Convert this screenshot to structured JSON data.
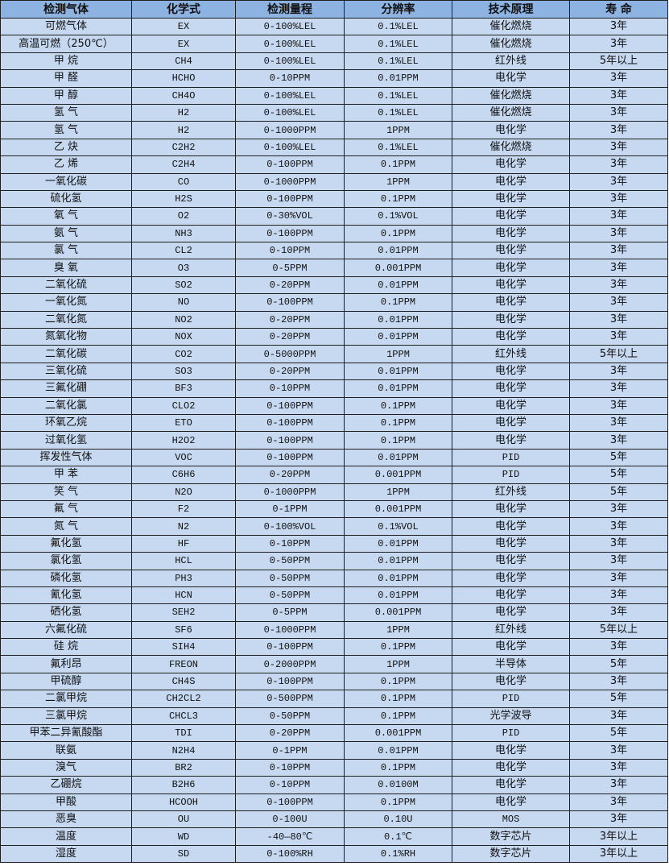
{
  "colors": {
    "header_bg": "#8db3e2",
    "cell_bg": "#c6d9f1",
    "border": "#1f1f1f"
  },
  "headers": [
    "检测气体",
    "化学式",
    "检测量程",
    "分辨率",
    "技术原理",
    "寿 命"
  ],
  "rows": [
    [
      "可燃气体",
      "EX",
      "0-100%LEL",
      "0.1%LEL",
      "催化燃烧",
      "3年"
    ],
    [
      "高温可燃（250℃）",
      "EX",
      "0-100%LEL",
      "0.1%LEL",
      "催化燃烧",
      "3年"
    ],
    [
      "甲 烷",
      "CH4",
      "0-100%LEL",
      "0.1%LEL",
      "红外线",
      "5年以上"
    ],
    [
      "甲 醛",
      "HCHO",
      "0-10PPM",
      "0.01PPM",
      "电化学",
      "3年"
    ],
    [
      "甲 醇",
      "CH4O",
      "0-100%LEL",
      "0.1%LEL",
      "催化燃烧",
      "3年"
    ],
    [
      "氢 气",
      "H2",
      "0-100%LEL",
      "0.1%LEL",
      "催化燃烧",
      "3年"
    ],
    [
      "氢 气",
      "H2",
      "0-1000PPM",
      "1PPM",
      "电化学",
      "3年"
    ],
    [
      "乙 炔",
      "C2H2",
      "0-100%LEL",
      "0.1%LEL",
      "催化燃烧",
      "3年"
    ],
    [
      "乙 烯",
      "C2H4",
      "0-100PPM",
      "0.1PPM",
      "电化学",
      "3年"
    ],
    [
      "一氧化碳",
      "CO",
      "0-1000PPM",
      "1PPM",
      "电化学",
      "3年"
    ],
    [
      "硫化氢",
      "H2S",
      "0-100PPM",
      "0.1PPM",
      "电化学",
      "3年"
    ],
    [
      "氧 气",
      "O2",
      "0-30%VOL",
      "0.1%VOL",
      "电化学",
      "3年"
    ],
    [
      "氨 气",
      "NH3",
      "0-100PPM",
      "0.1PPM",
      "电化学",
      "3年"
    ],
    [
      "氯 气",
      "CL2",
      "0-10PPM",
      "0.01PPM",
      "电化学",
      "3年"
    ],
    [
      "臭 氧",
      "O3",
      "0-5PPM",
      "0.001PPM",
      "电化学",
      "3年"
    ],
    [
      "二氧化硫",
      "SO2",
      "0-20PPM",
      "0.01PPM",
      "电化学",
      "3年"
    ],
    [
      "一氧化氮",
      "NO",
      "0-100PPM",
      "0.1PPM",
      "电化学",
      "3年"
    ],
    [
      "二氧化氮",
      "NO2",
      "0-20PPM",
      "0.01PPM",
      "电化学",
      "3年"
    ],
    [
      "氮氧化物",
      "NOX",
      "0-20PPM",
      "0.01PPM",
      "电化学",
      "3年"
    ],
    [
      "二氧化碳",
      "CO2",
      "0-5000PPM",
      "1PPM",
      "红外线",
      "5年以上"
    ],
    [
      "三氧化硫",
      "SO3",
      "0-20PPM",
      "0.01PPM",
      "电化学",
      "3年"
    ],
    [
      "三氟化硼",
      "BF3",
      "0-10PPM",
      "0.01PPM",
      "电化学",
      "3年"
    ],
    [
      "二氧化氯",
      "CLO2",
      "0-100PPM",
      "0.1PPM",
      "电化学",
      "3年"
    ],
    [
      "环氧乙烷",
      "ETO",
      "0-100PPM",
      "0.1PPM",
      "电化学",
      "3年"
    ],
    [
      "过氧化氢",
      "H2O2",
      "0-100PPM",
      "0.1PPM",
      "电化学",
      "3年"
    ],
    [
      "挥发性气体",
      "VOC",
      "0-100PPM",
      "0.01PPM",
      "PID",
      "5年"
    ],
    [
      "甲 苯",
      "C6H6",
      "0-20PPM",
      "0.001PPM",
      "PID",
      "5年"
    ],
    [
      "笑 气",
      "N2O",
      "0-1000PPM",
      "1PPM",
      "红外线",
      "5年"
    ],
    [
      "氟 气",
      "F2",
      "0-1PPM",
      "0.001PPM",
      "电化学",
      "3年"
    ],
    [
      "氮 气",
      "N2",
      "0-100%VOL",
      "0.1%VOL",
      "电化学",
      "3年"
    ],
    [
      "氟化氢",
      "HF",
      "0-10PPM",
      "0.01PPM",
      "电化学",
      "3年"
    ],
    [
      "氯化氢",
      "HCL",
      "0-50PPM",
      "0.01PPM",
      "电化学",
      "3年"
    ],
    [
      "磷化氢",
      "PH3",
      "0-50PPM",
      "0.01PPM",
      "电化学",
      "3年"
    ],
    [
      "氰化氢",
      "HCN",
      "0-50PPM",
      "0.01PPM",
      "电化学",
      "3年"
    ],
    [
      "硒化氢",
      "SEH2",
      "0-5PPM",
      "0.001PPM",
      "电化学",
      "3年"
    ],
    [
      "六氟化硫",
      "SF6",
      "0-1000PPM",
      "1PPM",
      "红外线",
      "5年以上"
    ],
    [
      "硅 烷",
      "SIH4",
      "0-100PPM",
      "0.1PPM",
      "电化学",
      "3年"
    ],
    [
      "氟利昂",
      "FREON",
      "0-2000PPM",
      "1PPM",
      "半导体",
      "5年"
    ],
    [
      "甲硫醇",
      "CH4S",
      "0-100PPM",
      "0.1PPM",
      "电化学",
      "3年"
    ],
    [
      "二氯甲烷",
      "CH2CL2",
      "0-500PPM",
      "0.1PPM",
      "PID",
      "5年"
    ],
    [
      "三氯甲烷",
      "CHCL3",
      "0-50PPM",
      "0.1PPM",
      "光学波导",
      "3年"
    ],
    [
      "甲苯二异氰酸酯",
      "TDI",
      "0-20PPM",
      "0.001PPM",
      "PID",
      "5年"
    ],
    [
      "联氨",
      "N2H4",
      "0-1PPM",
      "0.01PPM",
      "电化学",
      "3年"
    ],
    [
      "溴气",
      "BR2",
      "0-10PPM",
      "0.1PPM",
      "电化学",
      "3年"
    ],
    [
      "乙硼烷",
      "B2H6",
      "0-10PPM",
      "0.0100M",
      "电化学",
      "3年"
    ],
    [
      "甲酸",
      "HCOOH",
      "0-100PPM",
      "0.1PPM",
      "电化学",
      "3年"
    ],
    [
      "恶臭",
      "OU",
      "0-100U",
      "0.10U",
      "MOS",
      "3年"
    ],
    [
      "温度",
      "WD",
      "-40—80℃",
      "0.1℃",
      "数字芯片",
      "3年以上"
    ],
    [
      "湿度",
      "SD",
      "0-100%RH",
      "0.1%RH",
      "数字芯片",
      "3年以上"
    ]
  ]
}
